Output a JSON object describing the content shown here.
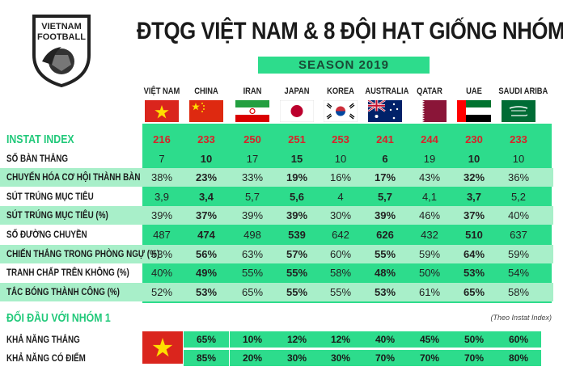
{
  "logo": {
    "line1": "VIETNAM",
    "line2": "FOOTBALL"
  },
  "title": "ĐTQG VIỆT NAM & 8 ĐỘI HẠT GIỐNG NHÓM 1",
  "season": "SEASON 2019",
  "teams": [
    "VIỆT NAM",
    "CHINA",
    "IRAN",
    "JAPAN",
    "KOREA",
    "AUSTRALIA",
    "QATAR",
    "UAE",
    "SAUDI ARIBA"
  ],
  "flags": [
    "flag-vietnam",
    "flag-china",
    "flag-iran",
    "flag-japan",
    "flag-korea",
    "flag-australia",
    "flag-qatar",
    "flag-uae",
    "flag-saudi-arabia"
  ],
  "stats": [
    {
      "label": "INSTAT INDEX",
      "values": [
        "216",
        "233",
        "250",
        "251",
        "253",
        "241",
        "244",
        "230",
        "233"
      ]
    },
    {
      "label": "SỐ BÀN THẮNG",
      "values": [
        "7",
        "10",
        "17",
        "15",
        "10",
        "6",
        "19",
        "10",
        "10"
      ]
    },
    {
      "label": "CHUYỂN HÓA CƠ HỘI THÀNH BÀN",
      "values": [
        "38%",
        "23%",
        "33%",
        "19%",
        "16%",
        "17%",
        "43%",
        "32%",
        "36%"
      ]
    },
    {
      "label": "SÚT TRÚNG MỤC TIÊU",
      "values": [
        "3,9",
        "3,4",
        "5,7",
        "5,6",
        "4",
        "5,7",
        "4,1",
        "3,7",
        "5,2"
      ]
    },
    {
      "label": "SÚT TRÚNG MỤC TIÊU (%)",
      "values": [
        "39%",
        "37%",
        "39%",
        "39%",
        "30%",
        "39%",
        "46%",
        "37%",
        "40%"
      ]
    },
    {
      "label": "SỐ ĐƯỜNG CHUYỀN",
      "values": [
        "487",
        "474",
        "498",
        "539",
        "642",
        "626",
        "432",
        "510",
        "637"
      ]
    },
    {
      "label": "CHIẾN THẮNG TRONG PHÒNG NGỰ (%)",
      "values": [
        "53%",
        "56%",
        "63%",
        "57%",
        "60%",
        "55%",
        "59%",
        "64%",
        "59%"
      ]
    },
    {
      "label": "TRANH CHẤP TRÊN KHÔNG (%)",
      "values": [
        "40%",
        "49%",
        "55%",
        "55%",
        "58%",
        "48%",
        "50%",
        "53%",
        "54%"
      ]
    },
    {
      "label": "TẮC BÓNG THÀNH CÔNG (%)",
      "values": [
        "52%",
        "53%",
        "65%",
        "55%",
        "55%",
        "53%",
        "61%",
        "65%",
        "58%"
      ]
    }
  ],
  "h2h": {
    "title": "ĐỐI ĐẦU VỚI NHÓM 1",
    "note": "(Theo Instat Index)",
    "rows": [
      {
        "label": "KHẢ NĂNG THẮNG",
        "values": [
          "65%",
          "10%",
          "12%",
          "12%",
          "40%",
          "45%",
          "50%",
          "60%"
        ]
      },
      {
        "label": "KHẢ NĂNG CÓ ĐIỂM",
        "values": [
          "85%",
          "20%",
          "30%",
          "30%",
          "70%",
          "70%",
          "70%",
          "80%"
        ]
      }
    ]
  },
  "colors": {
    "accent": "#2ddc8c",
    "band": "#a8efc9",
    "highlight": "#d8232a"
  }
}
